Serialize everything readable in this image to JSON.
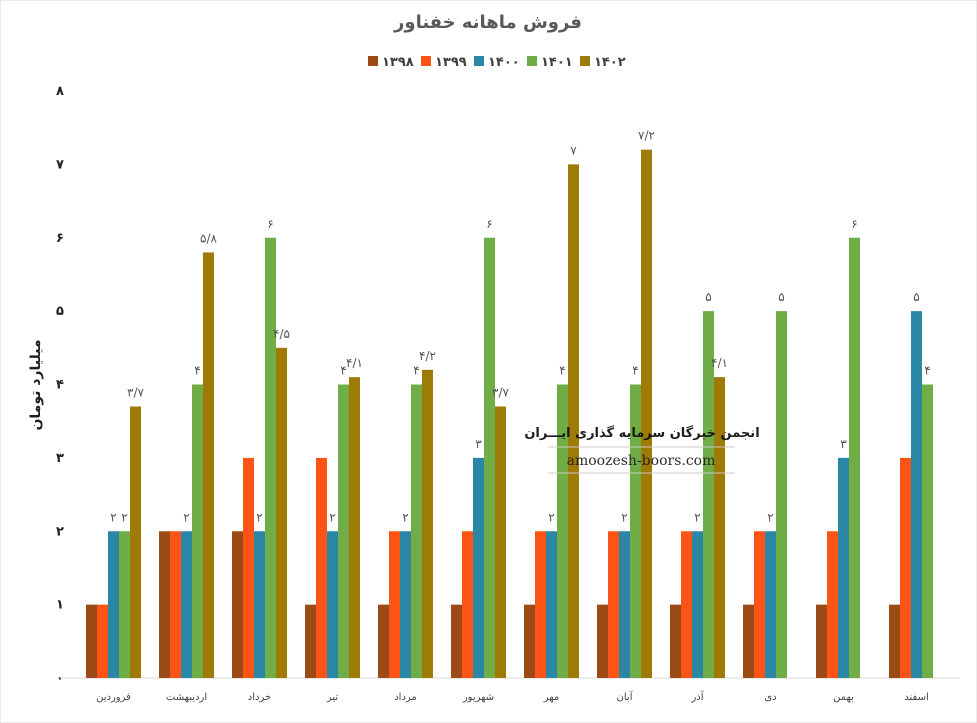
{
  "colors": {
    "1398": "#9c4a16",
    "1399": "#fc5316",
    "1400": "#2a87a6",
    "1401": "#70ad47",
    "1402": "#9e7a06"
  },
  "watermark": {
    "title": "انجمن خبرگان سرمایه گذاری ایـــران",
    "url": "amoozesh-boors.com"
  },
  "chart_data": {
    "type": "bar",
    "title": "فروش ماهانه خفناور",
    "ylabel": "میلیارد تومان",
    "xlabel": "",
    "ylim": [
      0,
      8
    ],
    "yticks": [
      "۰",
      "۱",
      "۲",
      "۳",
      "۴",
      "۵",
      "۶",
      "۷",
      "۸"
    ],
    "legend_position": "top",
    "grid": false,
    "categories": [
      "فروردین",
      "اردیبهشت",
      "خرداد",
      "تیر",
      "مرداد",
      "شهریور",
      "مهر",
      "آبان",
      "آذر",
      "دی",
      "بهمن",
      "اسفند"
    ],
    "series": [
      {
        "name": "۱۳۹۸",
        "key": "1398",
        "values": [
          1,
          2,
          2,
          1,
          1,
          1,
          1,
          1,
          1,
          1,
          1,
          1
        ],
        "labels": [
          "",
          "",
          "",
          "",
          "",
          "",
          "",
          "",
          "",
          "",
          "",
          ""
        ]
      },
      {
        "name": "۱۳۹۹",
        "key": "1399",
        "values": [
          1,
          2,
          3,
          3,
          2,
          2,
          2,
          2,
          2,
          2,
          2,
          3
        ],
        "labels": [
          "",
          "",
          "",
          "",
          "",
          "",
          "",
          "",
          "",
          "",
          "",
          ""
        ]
      },
      {
        "name": "۱۴۰۰",
        "key": "1400",
        "values": [
          2,
          2,
          2,
          2,
          2,
          3,
          2,
          2,
          2,
          2,
          3,
          5
        ],
        "labels": [
          "۲",
          "۲",
          "۲",
          "۲",
          "۲",
          "۳",
          "۲",
          "۲",
          "۲",
          "۲",
          "۳",
          "۵"
        ]
      },
      {
        "name": "۱۴۰۱",
        "key": "1401",
        "values": [
          2,
          4,
          6,
          4,
          4,
          6,
          4,
          4,
          5,
          5,
          6,
          4
        ],
        "labels": [
          "۲",
          "۴",
          "۶",
          "۴",
          "۴",
          "۶",
          "۴",
          "۴",
          "۵",
          "۵",
          "۶",
          "۴"
        ]
      },
      {
        "name": "۱۴۰۲",
        "key": "1402",
        "values": [
          3.7,
          5.8,
          4.5,
          4.1,
          4.2,
          3.7,
          7,
          7.2,
          4.1,
          null,
          null,
          null
        ],
        "labels": [
          "۳/۷",
          "۵/۸",
          "۴/۵",
          "۴/۱",
          "۴/۲",
          "۳/۷",
          "۷",
          "۷/۲",
          "۴/۱",
          "",
          "",
          ""
        ]
      }
    ]
  }
}
